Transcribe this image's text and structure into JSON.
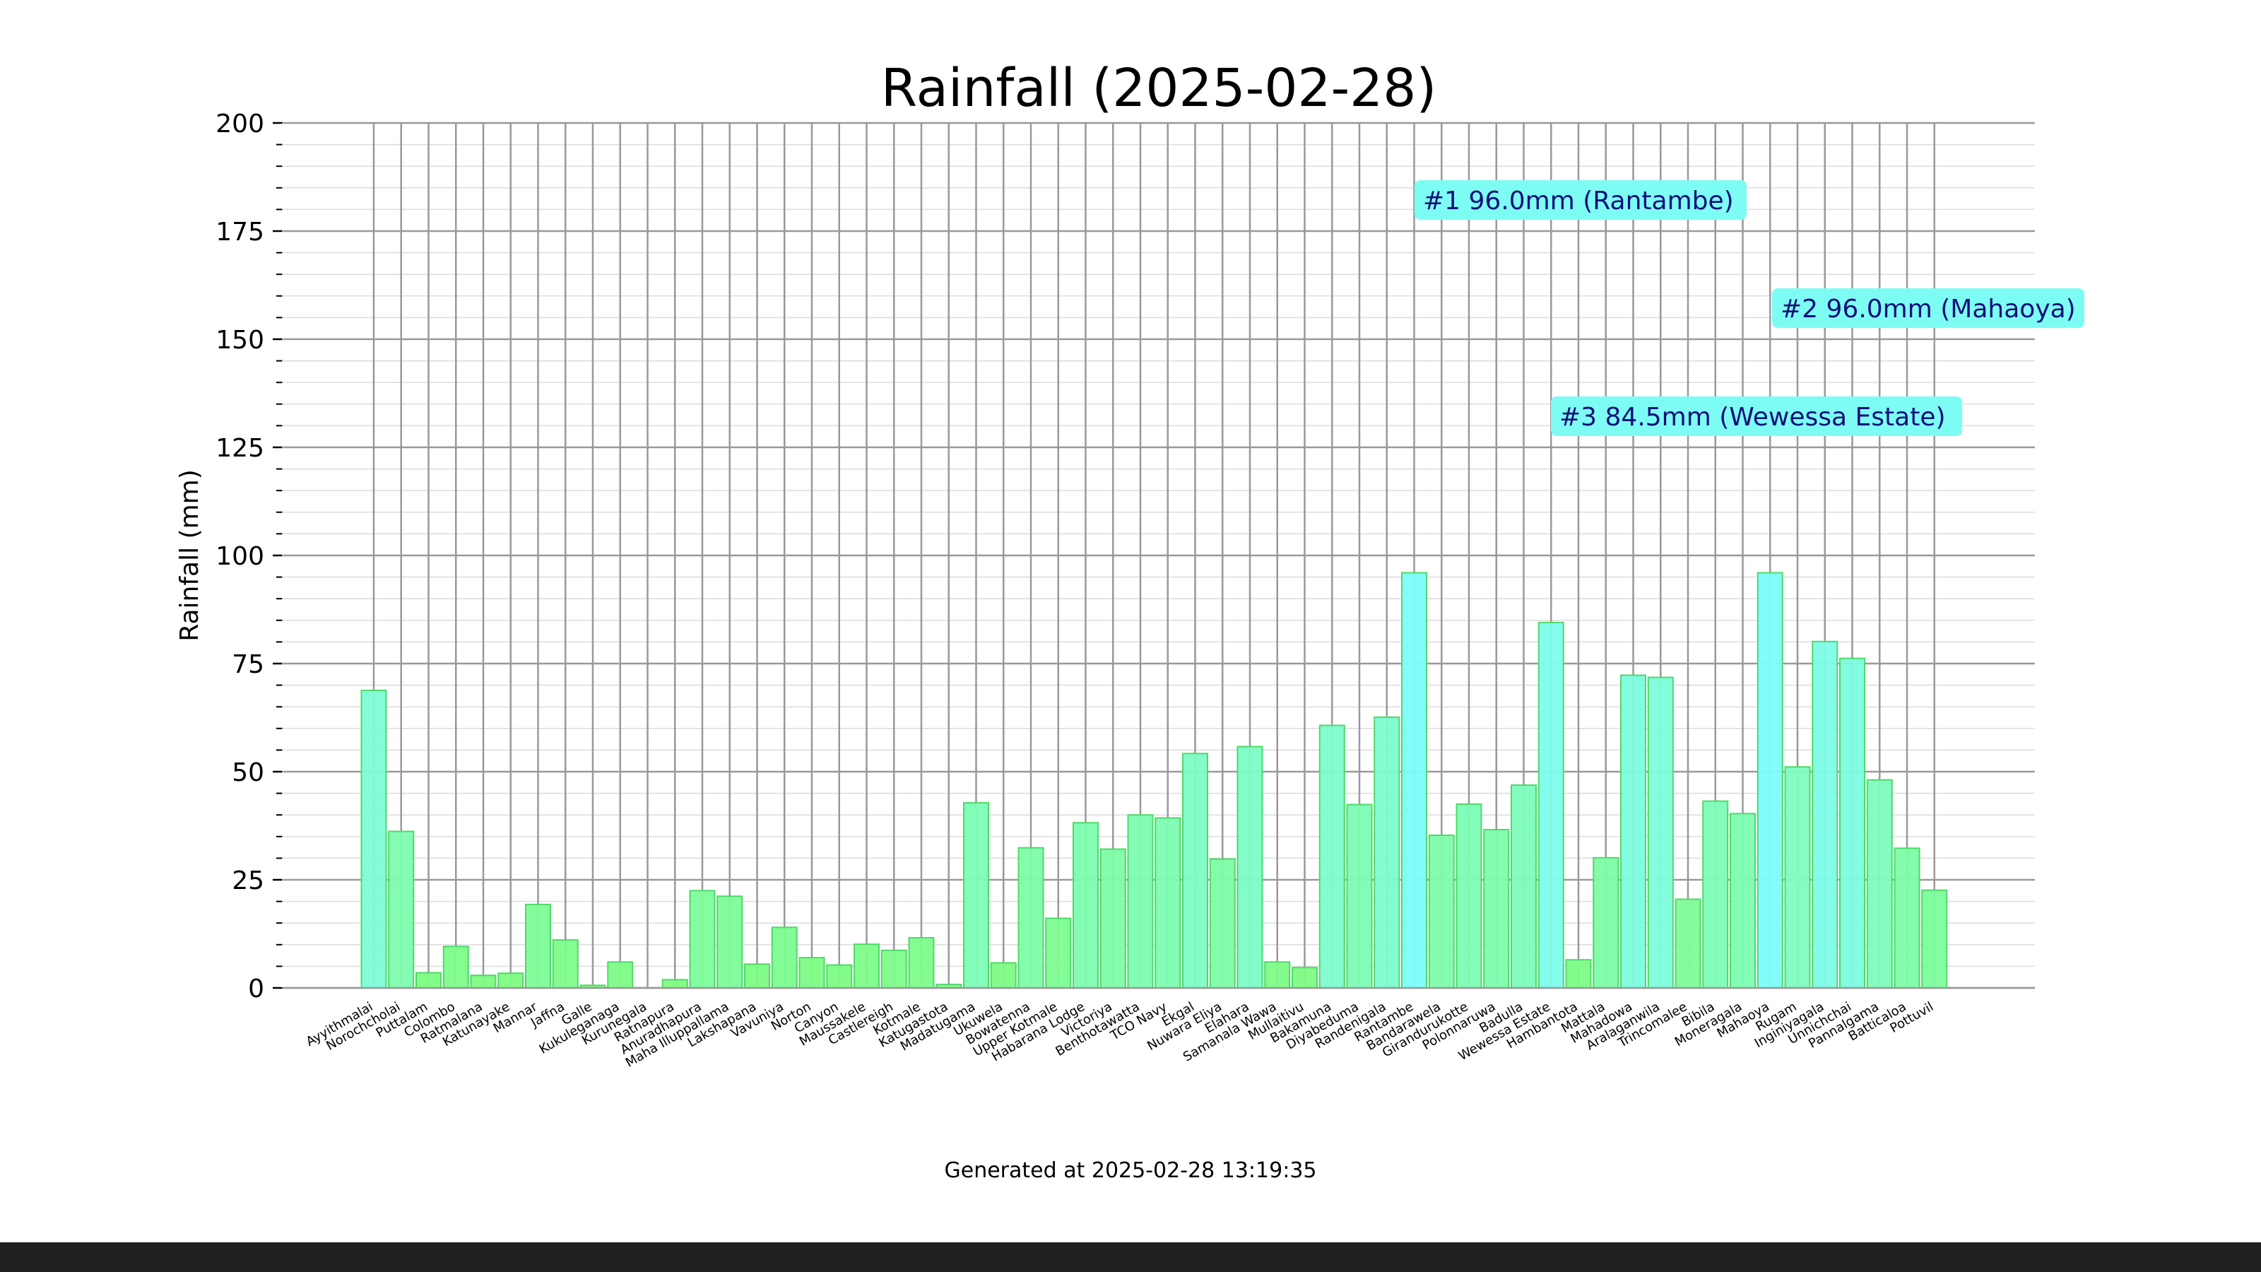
{
  "chart_data": {
    "type": "bar",
    "title": "Rainfall (2025-02-28)",
    "ylabel": "Rainfall (mm)",
    "xlabel": "",
    "ylim": [
      0,
      200
    ],
    "yticks": [
      0,
      25,
      50,
      75,
      100,
      125,
      150,
      175,
      200
    ],
    "grid": true,
    "categories": [
      "Ayyithmalai",
      "Norochcholai",
      "Puttalam",
      "Colombo",
      "Ratmalana",
      "Katunayake",
      "Mannar",
      "Jaffna",
      "Galle",
      "Kukuleganaga",
      "Kurunegala",
      "Ratnapura",
      "Anuradhapura",
      "Maha Illuppallama",
      "Lakshapana",
      "Vavuniya",
      "Norton",
      "Canyon",
      "Maussakele",
      "Castlereigh",
      "Kotmale",
      "Katugastota",
      "Madatugama",
      "Ukuwela",
      "Bowatenna",
      "Upper Kotmale",
      "Habarana Lodge",
      "Victoriya",
      "Benthotawatta",
      "TCO Navy",
      "Ekgal",
      "Nuwara Eliya",
      "Elahara",
      "Samanala Wawa",
      "Mullaitivu",
      "Bakamuna",
      "Diyabeduma",
      "Randenigala",
      "Rantambe",
      "Bandarawela",
      "Girandurukotte",
      "Polonnaruwa",
      "Badulla",
      "Wewessa Estate",
      "Hambantota",
      "Mattala",
      "Mahadowa",
      "Aralaganwila",
      "Trincomalee",
      "Bibila",
      "Moneragala",
      "Mahaoya",
      "Rugam",
      "Inginiyagala",
      "Unnichchai",
      "Pannalgama",
      "Batticaloa",
      "Pottuvil"
    ],
    "values": [
      68.8,
      36.2,
      3.5,
      9.6,
      2.9,
      3.4,
      19.3,
      11.1,
      0.6,
      6.0,
      0.0,
      1.9,
      22.5,
      21.2,
      5.5,
      14.0,
      7.0,
      5.3,
      10.1,
      8.7,
      11.6,
      0.8,
      42.8,
      5.8,
      32.4,
      16.1,
      38.2,
      32.1,
      40.0,
      39.3,
      54.2,
      29.8,
      55.8,
      6.0,
      4.7,
      60.7,
      42.4,
      62.6,
      96.0,
      35.3,
      42.5,
      36.6,
      46.9,
      84.5,
      6.5,
      30.1,
      72.3,
      71.8,
      20.5,
      43.2,
      40.3,
      96.0,
      51.1,
      80.1,
      76.2,
      48.1,
      32.3,
      22.6
    ],
    "annotations": [
      {
        "rank": "#1",
        "label": "#1 96.0mm (Rantambe)",
        "value": 96.0,
        "station": "Rantambe"
      },
      {
        "rank": "#2",
        "label": "#2 96.0mm (Mahaoya)",
        "value": 96.0,
        "station": "Mahaoya"
      },
      {
        "rank": "#3",
        "label": "#3 84.5mm (Wewessa Estate)",
        "value": 84.5,
        "station": "Wewessa Estate"
      }
    ],
    "footer": "Generated at 2025-02-28 13:19:35",
    "colors": {
      "low": "#7dfc7d",
      "high": "#7dfcfc",
      "edge": "#4fd96a",
      "annotation_bg": "#7dfcf4",
      "annotation_text": "#10107a"
    }
  }
}
